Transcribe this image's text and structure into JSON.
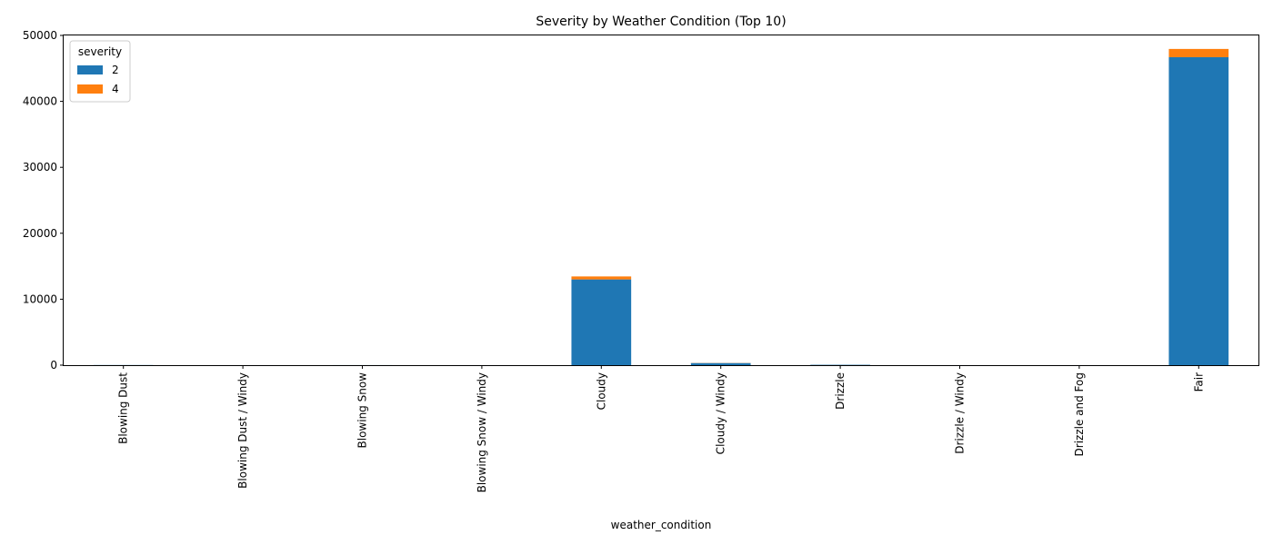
{
  "chart_data": {
    "type": "bar",
    "stacked": true,
    "title": "Severity by Weather Condition (Top 10)",
    "xlabel": "weather_condition",
    "ylabel": "",
    "ylim": [
      0,
      50000
    ],
    "yticks": [
      0,
      10000,
      20000,
      30000,
      40000,
      50000
    ],
    "grid": false,
    "legend": {
      "title": "severity",
      "placement": "top-left"
    },
    "categories": [
      "Blowing Dust",
      "Blowing Dust / Windy",
      "Blowing Snow",
      "Blowing Snow / Windy",
      "Cloudy",
      "Cloudy / Windy",
      "Drizzle",
      "Drizzle / Windy",
      "Drizzle and Fog",
      "Fair"
    ],
    "series": [
      {
        "name": "2",
        "color": "#1f77b4",
        "values": [
          20,
          5,
          10,
          5,
          13000,
          320,
          60,
          5,
          5,
          46700
        ]
      },
      {
        "name": "4",
        "color": "#ff7f0e",
        "values": [
          2,
          0,
          1,
          0,
          450,
          20,
          5,
          0,
          1,
          1250
        ]
      }
    ]
  }
}
